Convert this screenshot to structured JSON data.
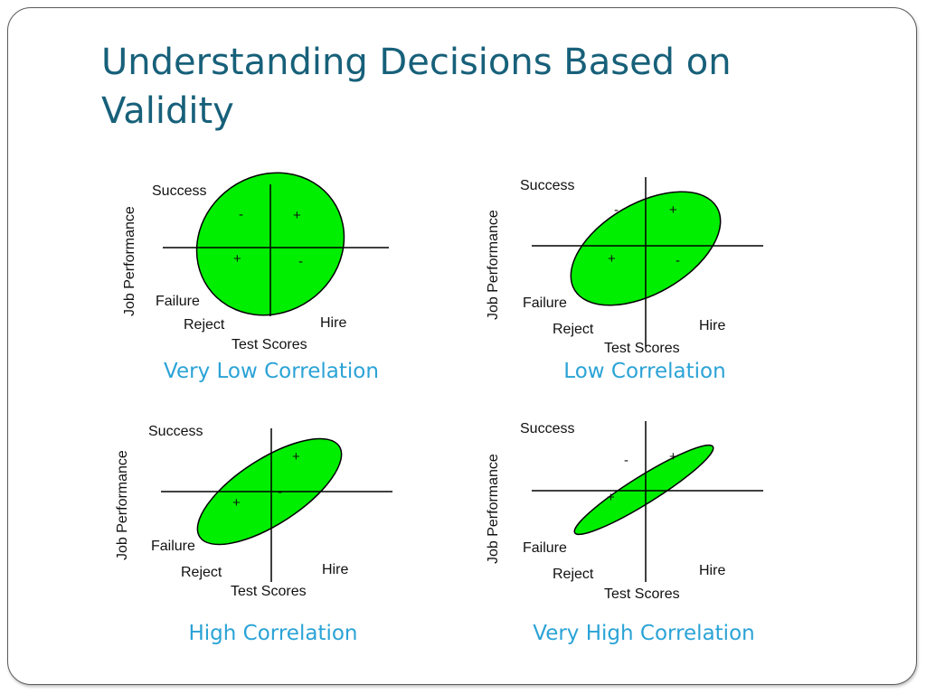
{
  "slide": {
    "title": "Understanding Decisions Based on Validity"
  },
  "colors": {
    "title": "#17607a",
    "caption": "#2aa3d6",
    "ellipse_fill": "#00ee00",
    "ellipse_stroke": "#000000"
  },
  "panel_labels": {
    "success": "Success",
    "failure": "Failure",
    "reject": "Reject",
    "hire": "Hire",
    "x_axis": "Test Scores",
    "y_axis": "Job Performance",
    "plus": "+",
    "minus": "-"
  },
  "panels": [
    {
      "caption": "Very Low Correlation"
    },
    {
      "caption": "Low Correlation"
    },
    {
      "caption": "High Correlation"
    },
    {
      "caption": "Very High Correlation"
    }
  ]
}
